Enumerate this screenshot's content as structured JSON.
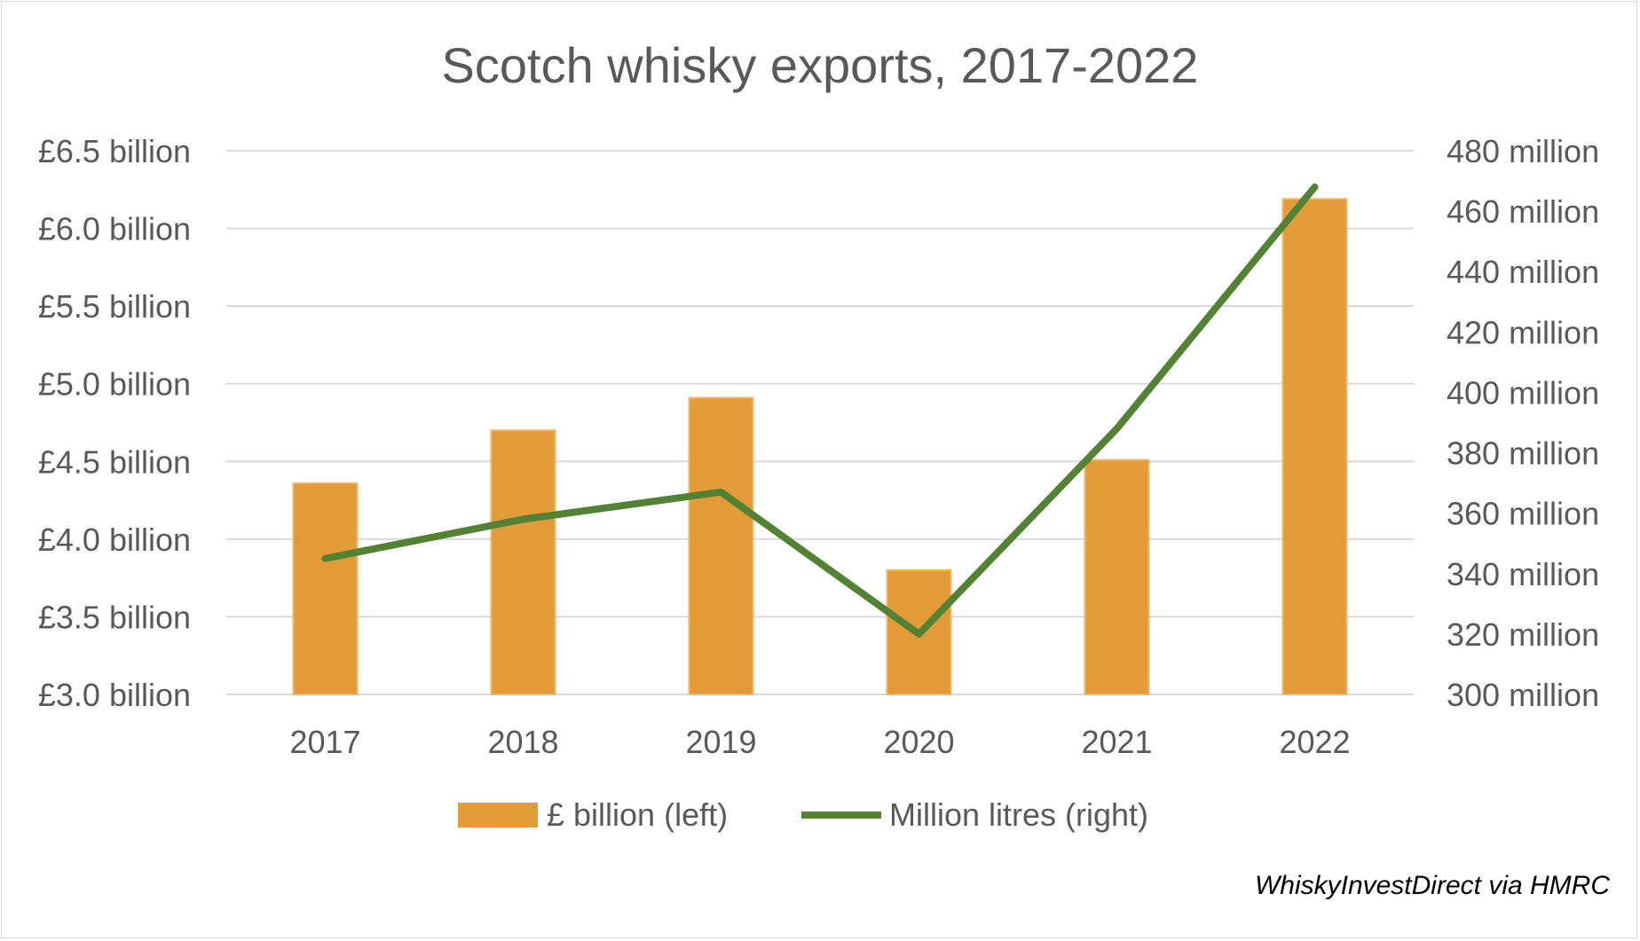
{
  "chart_data": {
    "type": "bar",
    "title": "Scotch whisky exports, 2017-2022",
    "categories": [
      "2017",
      "2018",
      "2019",
      "2020",
      "2021",
      "2022"
    ],
    "series": [
      {
        "name": "£ billion (left)",
        "type": "bar",
        "axis": "left",
        "color": "#e39b3a",
        "values": [
          4.36,
          4.7,
          4.91,
          3.8,
          4.51,
          6.19
        ]
      },
      {
        "name": "Million litres (right)",
        "type": "line",
        "axis": "right",
        "color": "#548235",
        "values": [
          345,
          358,
          367,
          320,
          388,
          468
        ]
      }
    ],
    "left_axis": {
      "ylim": [
        3.0,
        6.5
      ],
      "ticks": [
        3.0,
        3.5,
        4.0,
        4.5,
        5.0,
        5.5,
        6.0,
        6.5
      ],
      "tick_labels": [
        "£3.0 billion",
        "£3.5 billion",
        "£4.0 billion",
        "£4.5 billion",
        "£5.0 billion",
        "£5.5 billion",
        "£6.0 billion",
        "£6.5 billion"
      ]
    },
    "right_axis": {
      "ylim": [
        300,
        480
      ],
      "ticks": [
        300,
        320,
        340,
        360,
        380,
        400,
        420,
        440,
        460,
        480
      ],
      "tick_labels": [
        "300 million",
        "320 million",
        "340 million",
        "360 million",
        "380 million",
        "400 million",
        "420 million",
        "440 million",
        "460 million",
        "480 million"
      ]
    },
    "grid": true,
    "legend_position": "bottom",
    "source": "WhiskyInvestDirect via HMRC"
  }
}
